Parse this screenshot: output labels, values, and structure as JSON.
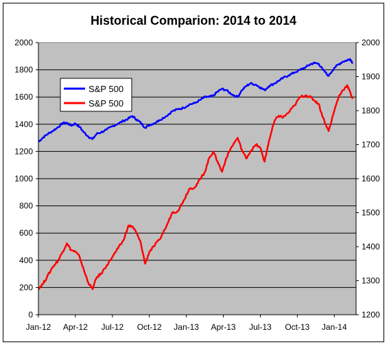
{
  "chart_data": {
    "type": "line",
    "title": "Historical Comparion: 2014 to 2014",
    "x_ticks": [
      "Jan-12",
      "Apr-12",
      "Jul-12",
      "Oct-12",
      "Jan-13",
      "Apr-13",
      "Jul-13",
      "Oct-13",
      "Jan-14"
    ],
    "y_left": {
      "min": 0,
      "max": 2000,
      "step": 200,
      "ticks": [
        "0",
        "200",
        "400",
        "600",
        "800",
        "1000",
        "1200",
        "1400",
        "1600",
        "1800",
        "2000"
      ]
    },
    "y_right": {
      "min": 1200,
      "max": 2000,
      "step": 100,
      "ticks": [
        "1200",
        "1300",
        "1400",
        "1500",
        "1600",
        "1700",
        "1800",
        "1900",
        "2000"
      ]
    },
    "grid": true,
    "legend_position": "top-left",
    "plot_background": "#c0c0c0",
    "series": [
      {
        "name": "S&P 500",
        "color": "#0000ff",
        "axis": "left",
        "points": [
          [
            0,
            1270
          ],
          [
            0.3,
            1300
          ],
          [
            0.6,
            1325
          ],
          [
            1.0,
            1350
          ],
          [
            1.4,
            1380
          ],
          [
            1.7,
            1408
          ],
          [
            2.0,
            1410
          ],
          [
            2.3,
            1390
          ],
          [
            2.6,
            1405
          ],
          [
            2.9,
            1380
          ],
          [
            3.2,
            1340
          ],
          [
            3.5,
            1310
          ],
          [
            3.8,
            1290
          ],
          [
            4.1,
            1330
          ],
          [
            4.4,
            1340
          ],
          [
            4.8,
            1360
          ],
          [
            5.2,
            1385
          ],
          [
            5.6,
            1405
          ],
          [
            6.0,
            1425
          ],
          [
            6.3,
            1440
          ],
          [
            6.6,
            1460
          ],
          [
            6.9,
            1435
          ],
          [
            7.2,
            1410
          ],
          [
            7.5,
            1375
          ],
          [
            7.8,
            1395
          ],
          [
            8.1,
            1405
          ],
          [
            8.5,
            1430
          ],
          [
            9.0,
            1460
          ],
          [
            9.4,
            1495
          ],
          [
            9.8,
            1510
          ],
          [
            10.2,
            1520
          ],
          [
            10.6,
            1545
          ],
          [
            11.0,
            1555
          ],
          [
            11.4,
            1580
          ],
          [
            11.7,
            1600
          ],
          [
            12.0,
            1600
          ],
          [
            12.3,
            1610
          ],
          [
            12.6,
            1640
          ],
          [
            12.9,
            1660
          ],
          [
            13.2,
            1650
          ],
          [
            13.6,
            1620
          ],
          [
            14.0,
            1600
          ],
          [
            14.3,
            1650
          ],
          [
            14.6,
            1680
          ],
          [
            14.9,
            1700
          ],
          [
            15.3,
            1690
          ],
          [
            15.6,
            1670
          ],
          [
            15.9,
            1650
          ],
          [
            16.2,
            1680
          ],
          [
            16.6,
            1700
          ],
          [
            16.9,
            1720
          ],
          [
            17.2,
            1740
          ],
          [
            17.6,
            1760
          ],
          [
            18.0,
            1780
          ],
          [
            18.4,
            1800
          ],
          [
            18.8,
            1820
          ],
          [
            19.1,
            1840
          ],
          [
            19.4,
            1850
          ],
          [
            19.7,
            1845
          ],
          [
            20.0,
            1800
          ],
          [
            20.4,
            1755
          ],
          [
            20.8,
            1815
          ],
          [
            21.1,
            1840
          ],
          [
            21.4,
            1860
          ],
          [
            21.7,
            1870
          ],
          [
            21.9,
            1880
          ],
          [
            22.1,
            1850
          ]
        ]
      },
      {
        "name": "S&P 500",
        "color": "#ff0000",
        "axis": "right",
        "points": [
          [
            0,
            1277
          ],
          [
            0.3,
            1290
          ],
          [
            0.6,
            1310
          ],
          [
            1.0,
            1340
          ],
          [
            1.4,
            1360
          ],
          [
            1.7,
            1385
          ],
          [
            2.0,
            1410
          ],
          [
            2.3,
            1390
          ],
          [
            2.6,
            1385
          ],
          [
            2.9,
            1370
          ],
          [
            3.2,
            1330
          ],
          [
            3.5,
            1295
          ],
          [
            3.8,
            1275
          ],
          [
            4.1,
            1310
          ],
          [
            4.4,
            1320
          ],
          [
            4.8,
            1345
          ],
          [
            5.2,
            1370
          ],
          [
            5.6,
            1395
          ],
          [
            6.0,
            1420
          ],
          [
            6.3,
            1460
          ],
          [
            6.6,
            1460
          ],
          [
            6.9,
            1440
          ],
          [
            7.2,
            1410
          ],
          [
            7.5,
            1350
          ],
          [
            7.8,
            1385
          ],
          [
            8.1,
            1400
          ],
          [
            8.5,
            1420
          ],
          [
            9.0,
            1460
          ],
          [
            9.4,
            1500
          ],
          [
            9.8,
            1505
          ],
          [
            10.2,
            1535
          ],
          [
            10.6,
            1570
          ],
          [
            11.0,
            1575
          ],
          [
            11.4,
            1600
          ],
          [
            11.7,
            1620
          ],
          [
            12.0,
            1660
          ],
          [
            12.3,
            1680
          ],
          [
            12.6,
            1650
          ],
          [
            12.9,
            1620
          ],
          [
            13.2,
            1660
          ],
          [
            13.6,
            1695
          ],
          [
            14.0,
            1720
          ],
          [
            14.3,
            1685
          ],
          [
            14.6,
            1660
          ],
          [
            14.9,
            1680
          ],
          [
            15.3,
            1700
          ],
          [
            15.6,
            1690
          ],
          [
            15.9,
            1650
          ],
          [
            16.2,
            1710
          ],
          [
            16.6,
            1770
          ],
          [
            16.9,
            1785
          ],
          [
            17.2,
            1780
          ],
          [
            17.6,
            1795
          ],
          [
            18.0,
            1815
          ],
          [
            18.4,
            1840
          ],
          [
            18.8,
            1845
          ],
          [
            19.1,
            1840
          ],
          [
            19.4,
            1830
          ],
          [
            19.7,
            1820
          ],
          [
            20.0,
            1780
          ],
          [
            20.4,
            1740
          ],
          [
            20.8,
            1800
          ],
          [
            21.1,
            1840
          ],
          [
            21.4,
            1860
          ],
          [
            21.7,
            1875
          ],
          [
            21.9,
            1855
          ],
          [
            22.1,
            1835
          ]
        ]
      }
    ]
  }
}
